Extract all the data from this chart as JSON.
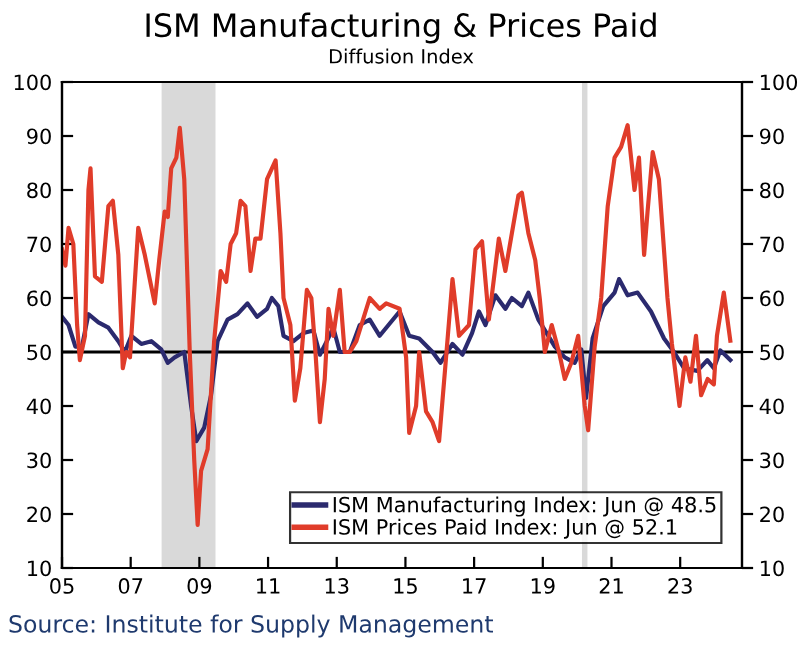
{
  "chart_data": {
    "type": "line",
    "title": "ISM Manufacturing & Prices Paid",
    "subtitle": "Diffusion Index",
    "annotations": [
      "Source: Institute for Supply Management"
    ],
    "xlim": [
      2005,
      2024.8
    ],
    "xticks": [
      {
        "value": 2005,
        "label": "05"
      },
      {
        "value": 2007,
        "label": "07"
      },
      {
        "value": 2009,
        "label": "09"
      },
      {
        "value": 2011,
        "label": "11"
      },
      {
        "value": 2013,
        "label": "13"
      },
      {
        "value": 2015,
        "label": "15"
      },
      {
        "value": 2017,
        "label": "17"
      },
      {
        "value": 2019,
        "label": "19"
      },
      {
        "value": 2021,
        "label": "21"
      },
      {
        "value": 2023,
        "label": "23"
      }
    ],
    "ylim": [
      10,
      100
    ],
    "yticks": [
      10,
      20,
      30,
      40,
      50,
      60,
      70,
      80,
      90,
      100
    ],
    "y2lim": [
      10,
      100
    ],
    "y2ticks": [
      10,
      20,
      30,
      40,
      50,
      60,
      70,
      80,
      90,
      100
    ],
    "grid": false,
    "legend": "bottom right",
    "ref_lines": [
      {
        "axis": "y",
        "value": 50,
        "color": "#000000"
      }
    ],
    "bands": [
      {
        "axis": "x",
        "from": 2007.9,
        "to": 2009.47,
        "color": "#d9d9d9"
      },
      {
        "axis": "x",
        "from": 2020.14,
        "to": 2020.3,
        "color": "#d9d9d9"
      }
    ],
    "series": [
      {
        "name": "ISM Manufacturing Index: Jun @ 48.5",
        "color": "#2b2a6e",
        "x": [
          2005.0,
          2005.19,
          2005.39,
          2005.58,
          2005.77,
          2006.06,
          2006.35,
          2006.64,
          2006.83,
          2007.02,
          2007.31,
          2007.6,
          2007.89,
          2008.08,
          2008.28,
          2008.56,
          2008.76,
          2008.91,
          2009.14,
          2009.34,
          2009.53,
          2009.82,
          2010.11,
          2010.4,
          2010.68,
          2010.97,
          2011.11,
          2011.3,
          2011.45,
          2011.74,
          2012.03,
          2012.32,
          2012.51,
          2012.71,
          2012.9,
          2013.09,
          2013.38,
          2013.67,
          2013.96,
          2014.25,
          2014.83,
          2015.11,
          2015.4,
          2015.79,
          2016.02,
          2016.37,
          2016.66,
          2016.94,
          2017.14,
          2017.33,
          2017.62,
          2017.91,
          2018.1,
          2018.39,
          2018.58,
          2018.87,
          2019.16,
          2019.35,
          2019.64,
          2019.93,
          2020.12,
          2020.26,
          2020.45,
          2020.76,
          2021.09,
          2021.22,
          2021.47,
          2021.76,
          2022.15,
          2022.53,
          2022.82,
          2023.11,
          2023.5,
          2023.79,
          2023.98,
          2024.17,
          2024.46
        ],
        "values": [
          56.5,
          55,
          51,
          51,
          57,
          55.5,
          54.5,
          52,
          50,
          53,
          51.5,
          52,
          50.5,
          48,
          49,
          50,
          40,
          33.5,
          36,
          42,
          52,
          56,
          57,
          59,
          56.5,
          58,
          60,
          58.5,
          53,
          52,
          53.5,
          54,
          49.5,
          52,
          54.5,
          50,
          50,
          55,
          56,
          53,
          57.5,
          53,
          52.5,
          50,
          48,
          51.5,
          49.5,
          53.5,
          57.5,
          55,
          60.5,
          58,
          60,
          58.5,
          61,
          56,
          53,
          51,
          49,
          48,
          50.5,
          41.5,
          52.5,
          58.5,
          61,
          63.5,
          60.5,
          61,
          57.5,
          52.5,
          50,
          47,
          46.5,
          48.5,
          47,
          50.3,
          48.5
        ]
      },
      {
        "name": "ISM Prices Paid Index: Jun @ 52.1",
        "color": "#e03c2a",
        "x": [
          2005.0,
          2005.1,
          2005.19,
          2005.33,
          2005.44,
          2005.52,
          2005.67,
          2005.77,
          2005.83,
          2005.96,
          2006.16,
          2006.35,
          2006.48,
          2006.64,
          2006.77,
          2006.87,
          2006.98,
          2007.22,
          2007.41,
          2007.7,
          2007.83,
          2007.99,
          2008.08,
          2008.18,
          2008.33,
          2008.43,
          2008.56,
          2008.72,
          2008.85,
          2008.95,
          2009.05,
          2009.24,
          2009.43,
          2009.62,
          2009.78,
          2009.91,
          2010.07,
          2010.2,
          2010.34,
          2010.49,
          2010.63,
          2010.78,
          2010.97,
          2011.22,
          2011.36,
          2011.45,
          2011.65,
          2011.78,
          2011.94,
          2012.13,
          2012.26,
          2012.38,
          2012.51,
          2012.65,
          2012.76,
          2012.9,
          2013.09,
          2013.23,
          2013.38,
          2013.57,
          2013.96,
          2014.25,
          2014.44,
          2014.83,
          2015.02,
          2015.11,
          2015.31,
          2015.4,
          2015.6,
          2015.79,
          2015.98,
          2016.17,
          2016.37,
          2016.56,
          2016.85,
          2017.04,
          2017.23,
          2017.43,
          2017.72,
          2017.91,
          2018.1,
          2018.29,
          2018.39,
          2018.58,
          2018.78,
          2018.91,
          2019.06,
          2019.26,
          2019.49,
          2019.64,
          2019.83,
          2020.03,
          2020.22,
          2020.32,
          2020.51,
          2020.7,
          2020.89,
          2021.09,
          2021.28,
          2021.47,
          2021.67,
          2021.8,
          2021.95,
          2022.05,
          2022.2,
          2022.38,
          2022.63,
          2022.76,
          2022.98,
          2023.15,
          2023.3,
          2023.46,
          2023.61,
          2023.8,
          2023.98,
          2024.07,
          2024.27,
          2024.46
        ],
        "values": [
          69,
          66,
          73,
          70,
          55,
          48.5,
          53,
          80,
          84,
          64,
          63,
          77,
          78,
          68,
          47,
          50,
          49,
          73,
          68,
          59,
          67,
          76,
          75,
          84,
          86,
          91.5,
          82,
          50,
          30,
          18,
          28,
          32,
          52,
          65,
          63,
          70,
          72,
          78,
          77,
          65,
          71,
          71,
          82,
          85.5,
          72,
          60,
          55,
          41,
          47,
          61.5,
          60,
          50,
          37,
          45,
          58,
          53,
          61.5,
          50,
          50,
          52,
          60,
          58,
          59,
          58,
          49,
          35,
          40,
          50,
          39,
          37,
          33.5,
          48,
          63.5,
          53,
          55,
          69,
          70.5,
          56,
          71,
          65,
          72,
          79,
          79.5,
          72,
          67,
          60,
          50,
          55,
          49.5,
          45,
          48,
          53,
          40,
          35.5,
          51,
          60,
          77,
          86,
          88,
          92,
          80,
          86,
          68,
          76,
          87,
          82,
          60,
          51.5,
          40,
          49,
          44.5,
          53,
          42,
          45,
          44,
          53,
          61,
          52.1
        ]
      }
    ]
  }
}
